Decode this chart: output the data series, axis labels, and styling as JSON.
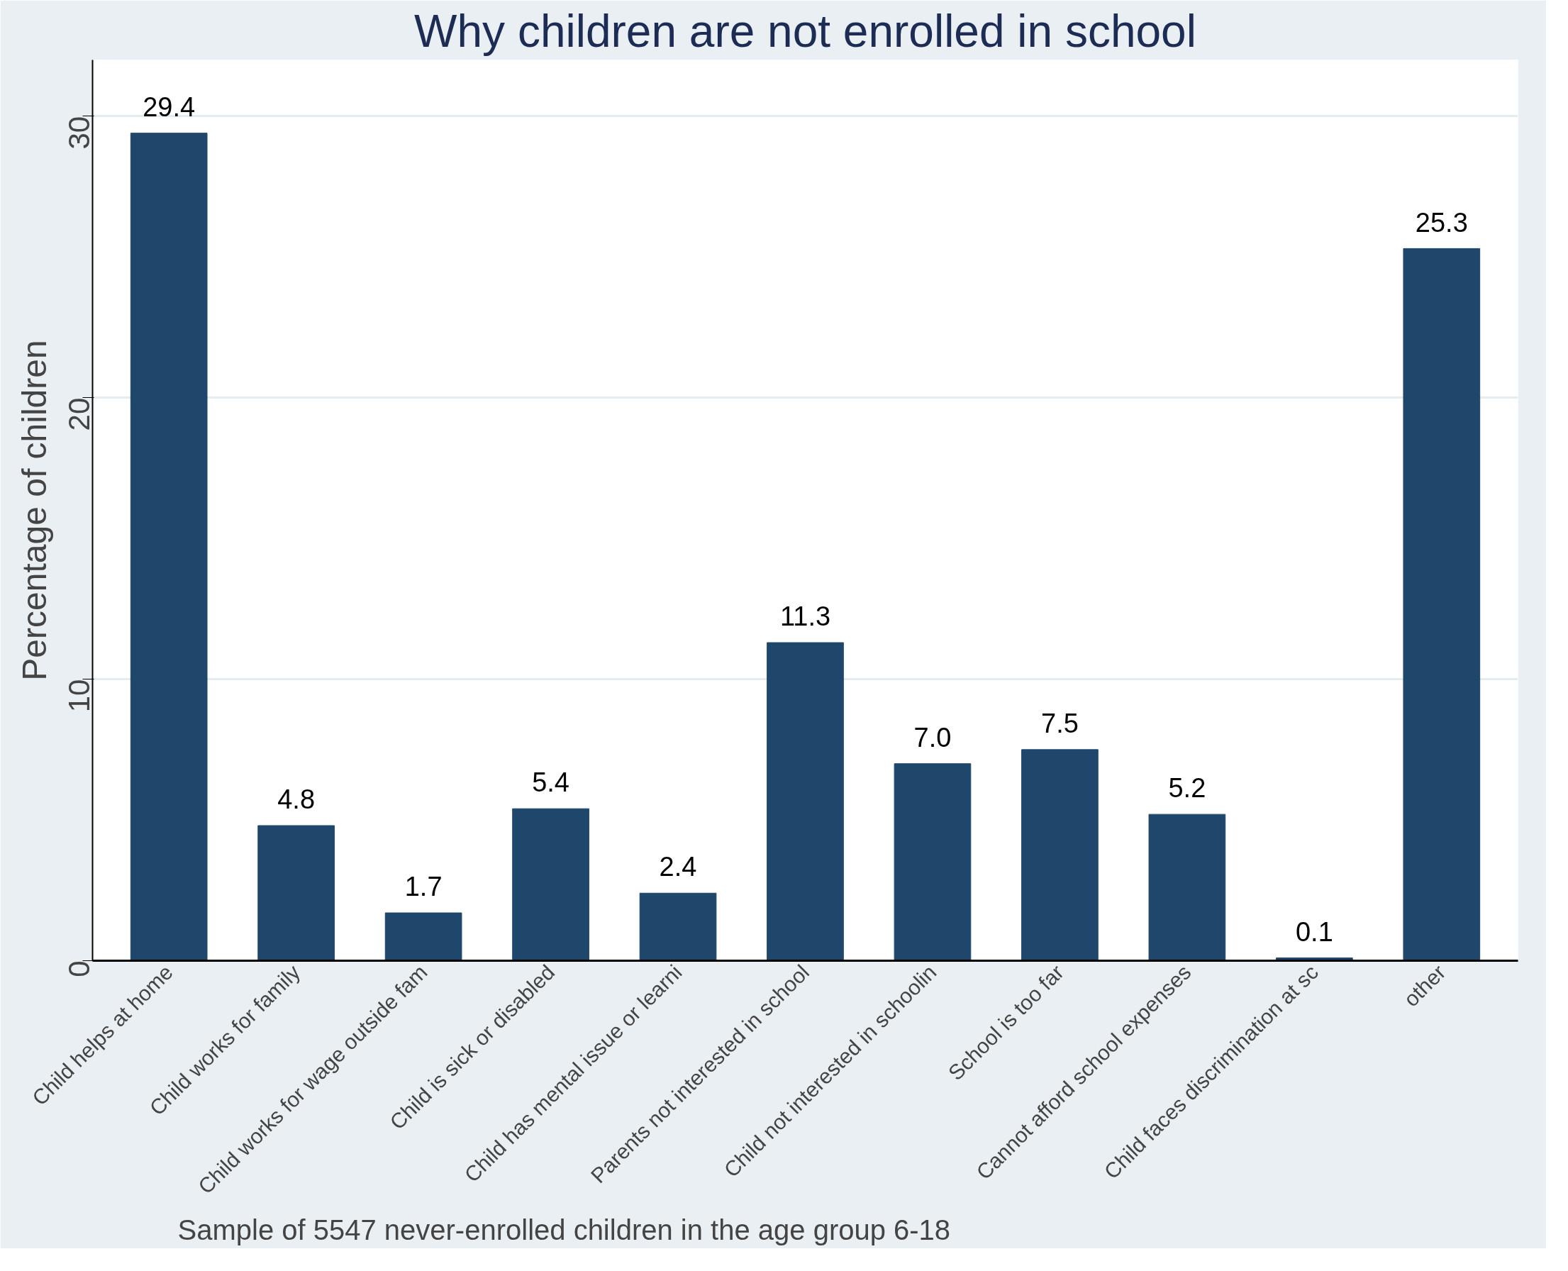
{
  "chart_data": {
    "type": "bar",
    "title": "Why children are not enrolled in school",
    "ylabel": "Percentage of children",
    "categories": [
      "Child helps at home",
      "Child works for family",
      "Child works for wage outside fam",
      "Child is sick or disabled",
      "Child has mental issue or learni",
      "Parents not interested in school",
      "Child not interested in schoolin",
      "School is too far",
      "Cannot afford school expenses",
      "Child faces discrimination at sc",
      "other"
    ],
    "values": [
      29.4,
      4.8,
      1.7,
      5.4,
      2.4,
      11.3,
      7.0,
      7.5,
      5.2,
      0.1,
      25.3
    ],
    "value_labels": [
      "29.4",
      "4.8",
      "1.7",
      "5.4",
      "2.4",
      "11.3",
      "7.0",
      "7.5",
      "5.2",
      "0.1",
      "25.3"
    ],
    "color": "#1f476b",
    "ylim": [
      0,
      32
    ],
    "yticks": [
      0,
      10,
      20,
      30
    ],
    "grid": "y",
    "annotations": [
      "Sample of 5547 never-enrolled children in the age group 6-18"
    ]
  }
}
